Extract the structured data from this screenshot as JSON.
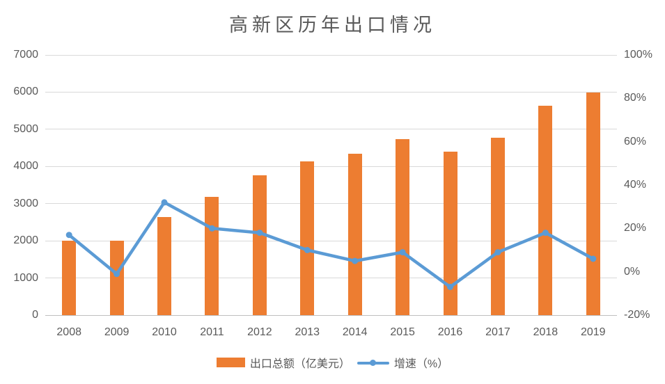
{
  "chart_data": {
    "type": "combo-bar-line",
    "title": "高新区历年出口情况",
    "categories": [
      "2008",
      "2009",
      "2010",
      "2011",
      "2012",
      "2013",
      "2014",
      "2015",
      "2016",
      "2017",
      "2018",
      "2019"
    ],
    "series": [
      {
        "name": "出口总额（亿美元）",
        "type": "bar",
        "axis": "left",
        "color": "#ED7D31",
        "values": [
          2000,
          2000,
          2630,
          3180,
          3760,
          4130,
          4340,
          4730,
          4390,
          4770,
          5630,
          5980
        ]
      },
      {
        "name": "增速（%）",
        "type": "line",
        "axis": "right",
        "color": "#5B9BD5",
        "values": [
          17,
          -1,
          32,
          20,
          18,
          10,
          5,
          9,
          -7,
          9,
          18,
          6
        ]
      }
    ],
    "left_axis": {
      "min": 0,
      "max": 7000,
      "step": 1000,
      "ticks": [
        "0",
        "1000",
        "2000",
        "3000",
        "4000",
        "5000",
        "6000",
        "7000"
      ]
    },
    "right_axis": {
      "min": -20,
      "max": 100,
      "step": 20,
      "ticks": [
        "-20%",
        "0%",
        "20%",
        "40%",
        "60%",
        "80%",
        "100%"
      ]
    },
    "grid": true,
    "legend_position": "bottom",
    "colors": {
      "bar": "#ED7D31",
      "line": "#5B9BD5",
      "gridline": "#D9D9D9",
      "axis_line": "#BFBFBF",
      "text": "#595959"
    }
  }
}
